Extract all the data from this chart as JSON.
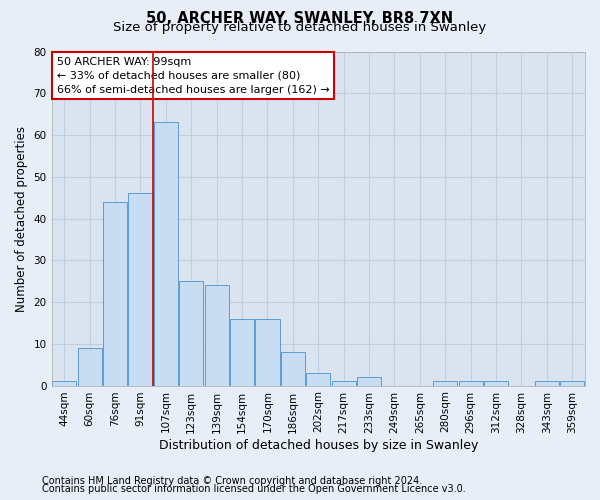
{
  "title1": "50, ARCHER WAY, SWANLEY, BR8 7XN",
  "title2": "Size of property relative to detached houses in Swanley",
  "xlabel": "Distribution of detached houses by size in Swanley",
  "ylabel": "Number of detached properties",
  "categories": [
    "44sqm",
    "60sqm",
    "76sqm",
    "91sqm",
    "107sqm",
    "123sqm",
    "139sqm",
    "154sqm",
    "170sqm",
    "186sqm",
    "202sqm",
    "217sqm",
    "233sqm",
    "249sqm",
    "265sqm",
    "280sqm",
    "296sqm",
    "312sqm",
    "328sqm",
    "343sqm",
    "359sqm"
  ],
  "values": [
    1,
    9,
    44,
    46,
    63,
    25,
    24,
    16,
    16,
    8,
    3,
    1,
    2,
    0,
    0,
    1,
    1,
    1,
    0,
    1,
    1
  ],
  "bar_color": "#c9ddf2",
  "bar_edge_color": "#5b9bd5",
  "vline_x": 3.5,
  "vline_color": "#cc0000",
  "ylim": [
    0,
    80
  ],
  "yticks": [
    0,
    10,
    20,
    30,
    40,
    50,
    60,
    70,
    80
  ],
  "annotation_text": "50 ARCHER WAY: 99sqm\n← 33% of detached houses are smaller (80)\n66% of semi-detached houses are larger (162) →",
  "annotation_box_color": "#ffffff",
  "annotation_box_edge_color": "#cc0000",
  "footer1": "Contains HM Land Registry data © Crown copyright and database right 2024.",
  "footer2": "Contains public sector information licensed under the Open Government Licence v3.0.",
  "background_color": "#e8eef7",
  "plot_bg_color": "#d9e4f0",
  "grid_color": "#c0cedf",
  "title1_fontsize": 10.5,
  "title2_fontsize": 9.5,
  "tick_fontsize": 7.5,
  "ylabel_fontsize": 8.5,
  "xlabel_fontsize": 9,
  "annotation_fontsize": 8,
  "footer_fontsize": 7
}
